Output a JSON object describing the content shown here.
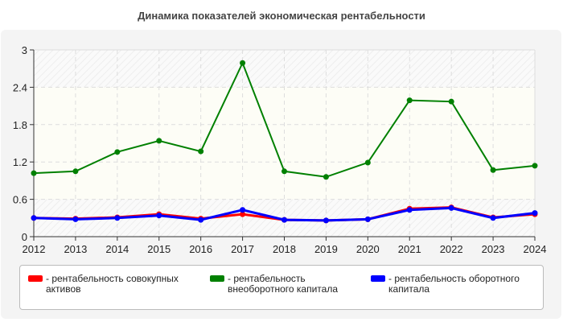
{
  "chart_data": {
    "type": "line",
    "title": "Динамика показателей экономическая рентабельности",
    "x": [
      "2012",
      "2013",
      "2014",
      "2015",
      "2016",
      "2017",
      "2018",
      "2019",
      "2020",
      "2021",
      "2022",
      "2023",
      "2024"
    ],
    "ylim": [
      0,
      3
    ],
    "yticks": [
      "0",
      "0.6",
      "1.2",
      "1.8",
      "2.4",
      "3"
    ],
    "grid": true,
    "legend_position": "bottom",
    "series": [
      {
        "name": "- рентабельность совокупных активов",
        "color": "#ff0000",
        "values": [
          0.3,
          0.29,
          0.31,
          0.36,
          0.29,
          0.36,
          0.27,
          0.26,
          0.28,
          0.45,
          0.47,
          0.31,
          0.36
        ]
      },
      {
        "name": "- рентабельность внеоборотного капитала",
        "color": "#008000",
        "values": [
          1.02,
          1.05,
          1.36,
          1.54,
          1.37,
          2.79,
          1.05,
          0.96,
          1.19,
          2.19,
          2.17,
          1.07,
          1.14
        ]
      },
      {
        "name": "- рентабельность оборотного капитала",
        "color": "#0000ff",
        "values": [
          0.3,
          0.28,
          0.3,
          0.34,
          0.27,
          0.43,
          0.27,
          0.26,
          0.28,
          0.43,
          0.46,
          0.3,
          0.38
        ]
      }
    ]
  }
}
